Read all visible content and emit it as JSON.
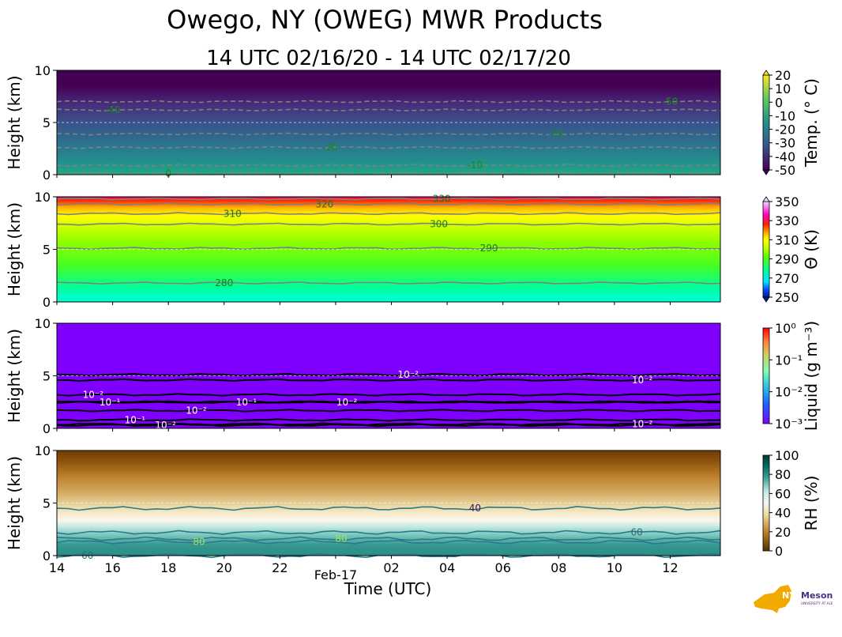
{
  "figure": {
    "title": "Owego, NY (OWEG) MWR Products",
    "subtitle": "14 UTC 02/16/20 - 14 UTC 02/17/20",
    "xlabel": "Time (UTC)",
    "xticks": [
      "14",
      "16",
      "18",
      "20",
      "22",
      "Feb-17",
      "02",
      "04",
      "06",
      "08",
      "10",
      "12"
    ],
    "xtick_hours": [
      0,
      2,
      4,
      6,
      8,
      10,
      12,
      14,
      16,
      18,
      20,
      22
    ],
    "x_range_hours": [
      0,
      23.8
    ],
    "logo": {
      "brand": "NYS Mesonet",
      "sub": "UNIVERSITY AT ALBANY"
    }
  },
  "chart_data": [
    {
      "type": "heatmap",
      "name": "temperature",
      "ylabel": "Height (km)",
      "ylim": [
        0,
        10
      ],
      "yticks": [
        "0",
        "5",
        "10"
      ],
      "colorbar": {
        "label": "Temp. (° C)",
        "ticks": [
          "20",
          "10",
          "0",
          "-10",
          "-20",
          "-30",
          "-40",
          "-50"
        ],
        "colors": [
          "#440154",
          "#472c7a",
          "#3b528b",
          "#2c728e",
          "#21918c",
          "#28ae80",
          "#5ec962",
          "#addc30",
          "#fde725"
        ]
      },
      "contour_labels": [
        {
          "text": "-50",
          "t": 22.0,
          "z": 7.0
        },
        {
          "text": "-40",
          "t": 2.0,
          "z": 6.2
        },
        {
          "text": "-30",
          "t": 17.9,
          "z": 3.9
        },
        {
          "text": "-20",
          "t": 9.8,
          "z": 2.6
        },
        {
          "text": "-10",
          "t": 15.0,
          "z": 0.9
        },
        {
          "text": "0",
          "t": 4.0,
          "z": 0.1
        }
      ]
    },
    {
      "type": "heatmap",
      "name": "theta",
      "ylabel": "Height (km)",
      "ylim": [
        0,
        10
      ],
      "yticks": [
        "0",
        "5",
        "10"
      ],
      "colorbar": {
        "label": "Θ (K)",
        "ticks": [
          "350",
          "330",
          "310",
          "290",
          "270",
          "250"
        ],
        "colors": [
          "#0a1a8c",
          "#0050ff",
          "#00e5ff",
          "#00ff9a",
          "#5aff00",
          "#c8ff00",
          "#ffff00",
          "#ffa500",
          "#ff2000",
          "#ff00c0",
          "#f0d0ff"
        ]
      },
      "contour_labels": [
        {
          "text": "280",
          "t": 6.0,
          "z": 1.8
        },
        {
          "text": "290",
          "t": 15.5,
          "z": 5.1
        },
        {
          "text": "300",
          "t": 13.7,
          "z": 7.4
        },
        {
          "text": "310",
          "t": 6.3,
          "z": 8.4
        },
        {
          "text": "320",
          "t": 9.6,
          "z": 9.3
        },
        {
          "text": "330",
          "t": 13.8,
          "z": 9.8
        }
      ]
    },
    {
      "type": "heatmap",
      "name": "liquid",
      "ylabel": "Height (km)",
      "ylim": [
        0,
        10
      ],
      "yticks": [
        "0",
        "5",
        "10"
      ],
      "colorbar": {
        "label": "Liquid (g m⁻³)",
        "ticks": [
          "10⁰",
          "10⁻¹",
          "10⁻²",
          "10⁻³"
        ],
        "colors": [
          "#8000ff",
          "#2060ff",
          "#30c8e0",
          "#80ffb0",
          "#d0d060",
          "#ff8040",
          "#ff0000"
        ]
      },
      "contour_labels": [
        {
          "text": "10⁻²",
          "t": 12.6,
          "z": 5.1
        },
        {
          "text": "10⁻²",
          "t": 21.0,
          "z": 4.6
        },
        {
          "text": "10⁻²",
          "t": 1.3,
          "z": 3.2
        },
        {
          "text": "10⁻¹",
          "t": 1.9,
          "z": 2.5
        },
        {
          "text": "10⁻²",
          "t": 10.4,
          "z": 2.5
        },
        {
          "text": "10⁻¹",
          "t": 6.8,
          "z": 2.5
        },
        {
          "text": "10⁻²",
          "t": 5.0,
          "z": 1.7
        },
        {
          "text": "10⁻¹",
          "t": 2.8,
          "z": 0.8
        },
        {
          "text": "10⁻²",
          "t": 3.9,
          "z": 0.3
        },
        {
          "text": "10⁻²",
          "t": 21.0,
          "z": 0.4
        }
      ]
    },
    {
      "type": "heatmap",
      "name": "rh",
      "ylabel": "Height (km)",
      "ylim": [
        0,
        10
      ],
      "yticks": [
        "0",
        "5",
        "10"
      ],
      "colorbar": {
        "label": "RH (%)",
        "ticks": [
          "100",
          "80",
          "60",
          "40",
          "20",
          "0"
        ],
        "colors": [
          "#543005",
          "#8c510a",
          "#bf812d",
          "#dfc27d",
          "#f6e8c3",
          "#f5f5f5",
          "#c7eae5",
          "#80cdc1",
          "#35978f",
          "#01665e",
          "#003c30"
        ]
      },
      "contour_labels": [
        {
          "text": "40",
          "t": 15.0,
          "z": 4.5
        },
        {
          "text": "60",
          "t": 20.8,
          "z": 2.2
        },
        {
          "text": "60",
          "t": 1.1,
          "z": 0.0
        },
        {
          "text": "80",
          "t": 5.1,
          "z": 1.3
        },
        {
          "text": "80",
          "t": 10.2,
          "z": 1.6
        }
      ]
    }
  ]
}
